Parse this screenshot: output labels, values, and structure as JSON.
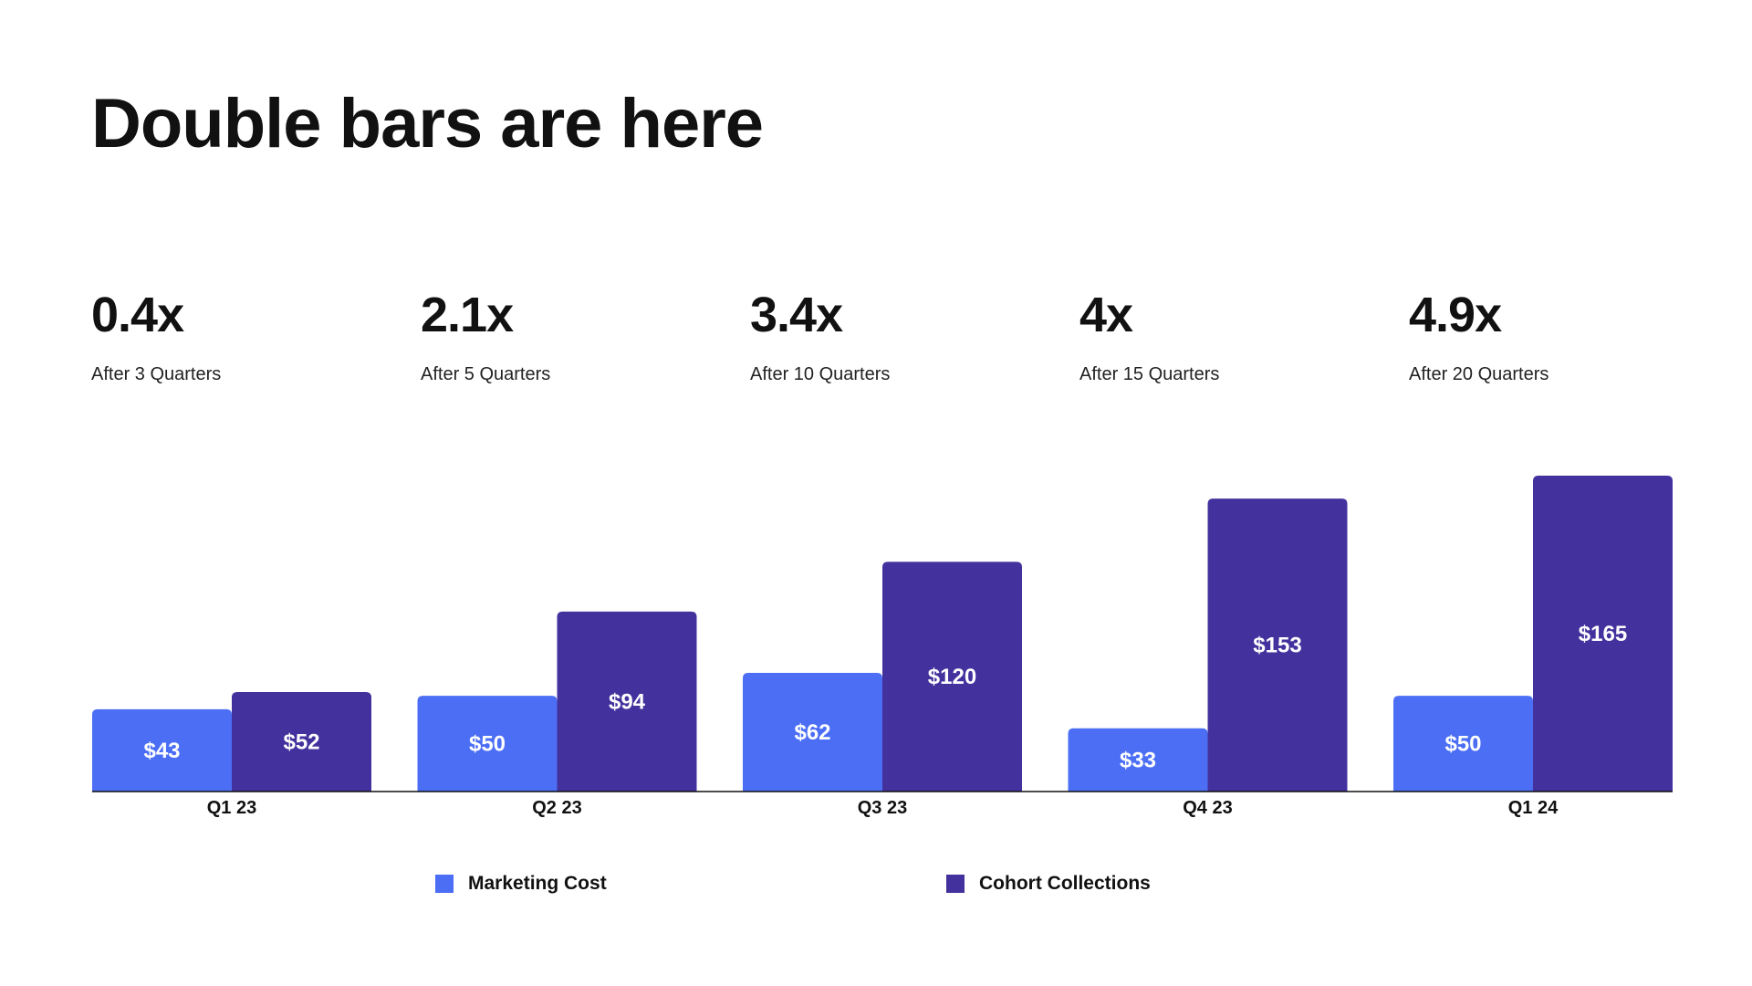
{
  "title": "Double bars are here",
  "stats": [
    {
      "value": "0.4x",
      "label": "After 3 Quarters"
    },
    {
      "value": "2.1x",
      "label": "After 5 Quarters"
    },
    {
      "value": "3.4x",
      "label": "After 10 Quarters"
    },
    {
      "value": "4x",
      "label": "After 15 Quarters"
    },
    {
      "value": "4.9x",
      "label": "After 20 Quarters"
    }
  ],
  "chart_data": {
    "type": "bar",
    "categories": [
      "Q1 23",
      "Q2 23",
      "Q3 23",
      "Q4 23",
      "Q1 24"
    ],
    "series": [
      {
        "name": "Marketing Cost",
        "values": [
          43,
          50,
          62,
          33,
          50
        ],
        "labels": [
          "$43",
          "$50",
          "$62",
          "$33",
          "$50"
        ],
        "color": "#4b6ef5"
      },
      {
        "name": "Cohort Collections",
        "values": [
          52,
          94,
          120,
          153,
          165
        ],
        "labels": [
          "$52",
          "$94",
          "$120",
          "$153",
          "$165"
        ],
        "color": "#43329d"
      }
    ],
    "ylim": [
      0,
      165
    ],
    "grid": false,
    "legend": "bottom"
  }
}
